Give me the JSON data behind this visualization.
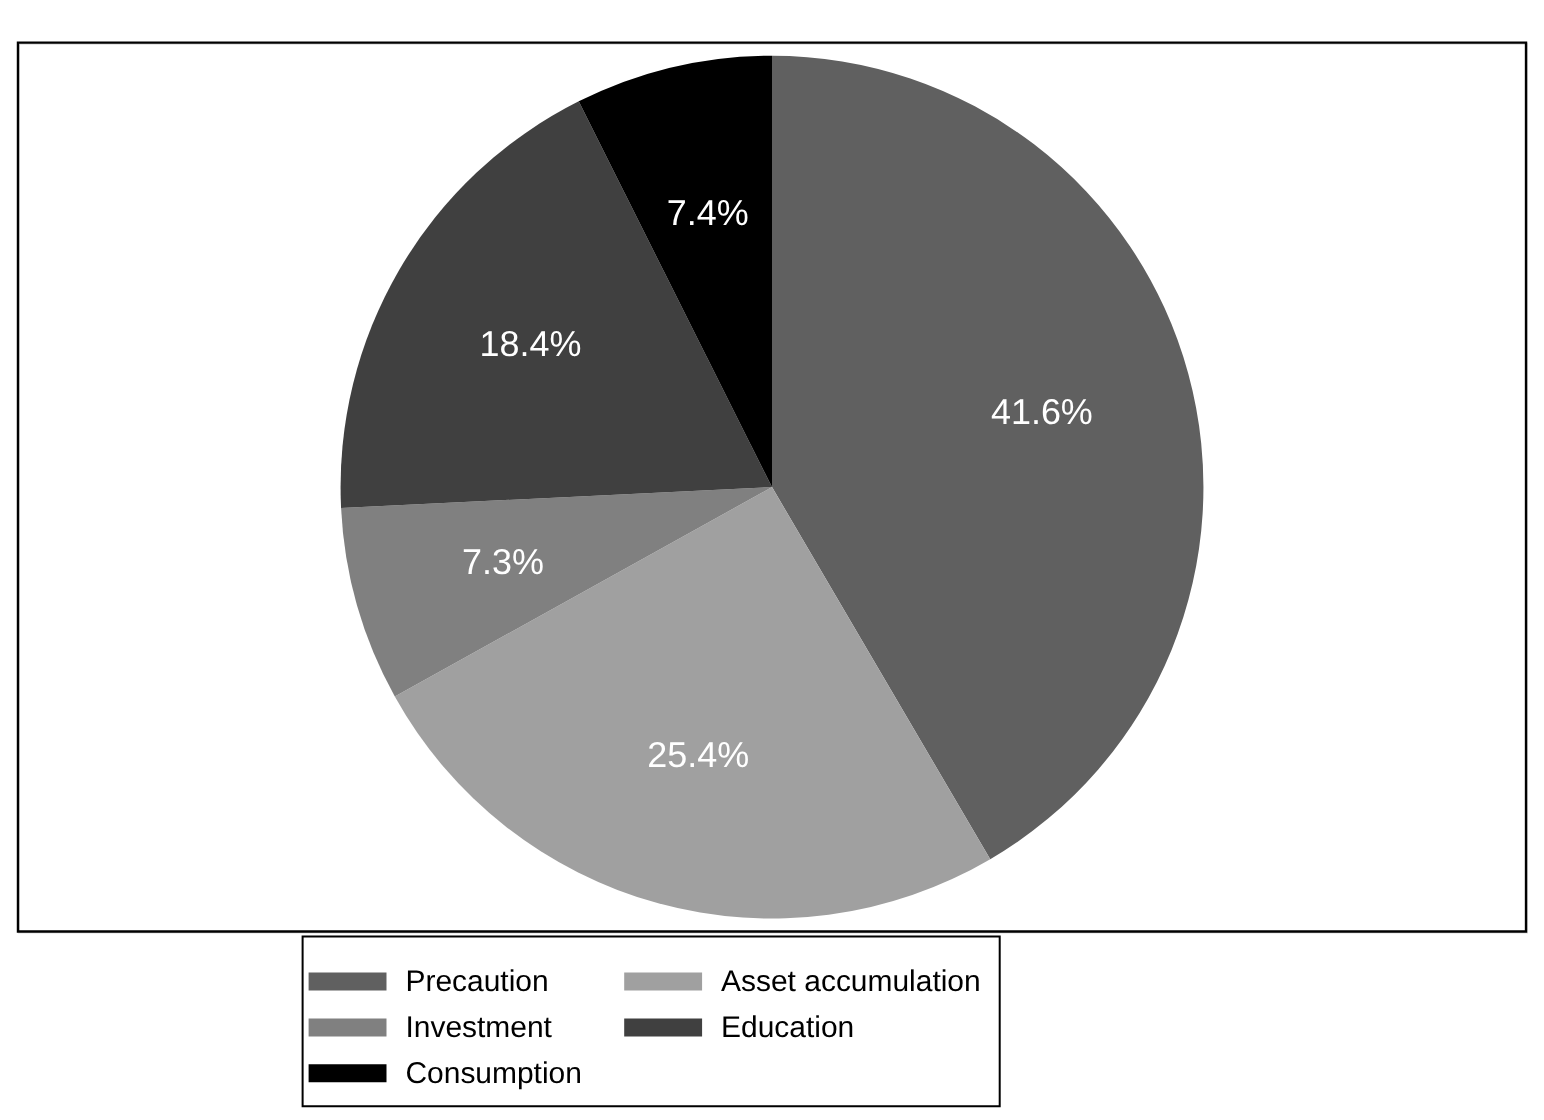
{
  "chart_data": {
    "type": "pie",
    "categories": [
      "Precaution",
      "Asset accumulation",
      "Investment",
      "Education",
      "Consumption"
    ],
    "values": [
      41.6,
      25.4,
      7.3,
      18.4,
      7.4
    ],
    "value_labels": [
      "41.6%",
      "25.4%",
      "7.3%",
      "18.4%",
      "7.4%"
    ],
    "colors": [
      "#606060",
      "#a0a0a0",
      "#808080",
      "#404040",
      "#000000"
    ],
    "legend": "bottom"
  }
}
